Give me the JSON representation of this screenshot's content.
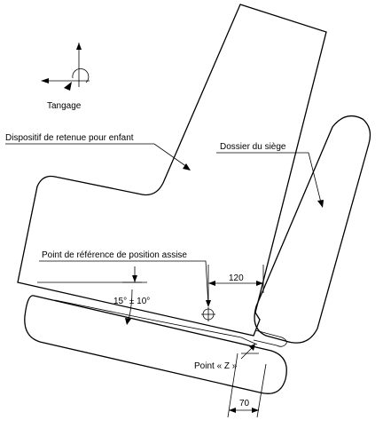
{
  "labels": {
    "tangage": "Tangage",
    "child_restraint": "Dispositif de retenue pour enfant",
    "seat_back": "Dossier du siège",
    "seating_reference_point": "Point de référence de position assise",
    "angle": "15° ± 10°",
    "dim_120": "120",
    "point_z": "Point « Z »",
    "dim_70": "70"
  }
}
